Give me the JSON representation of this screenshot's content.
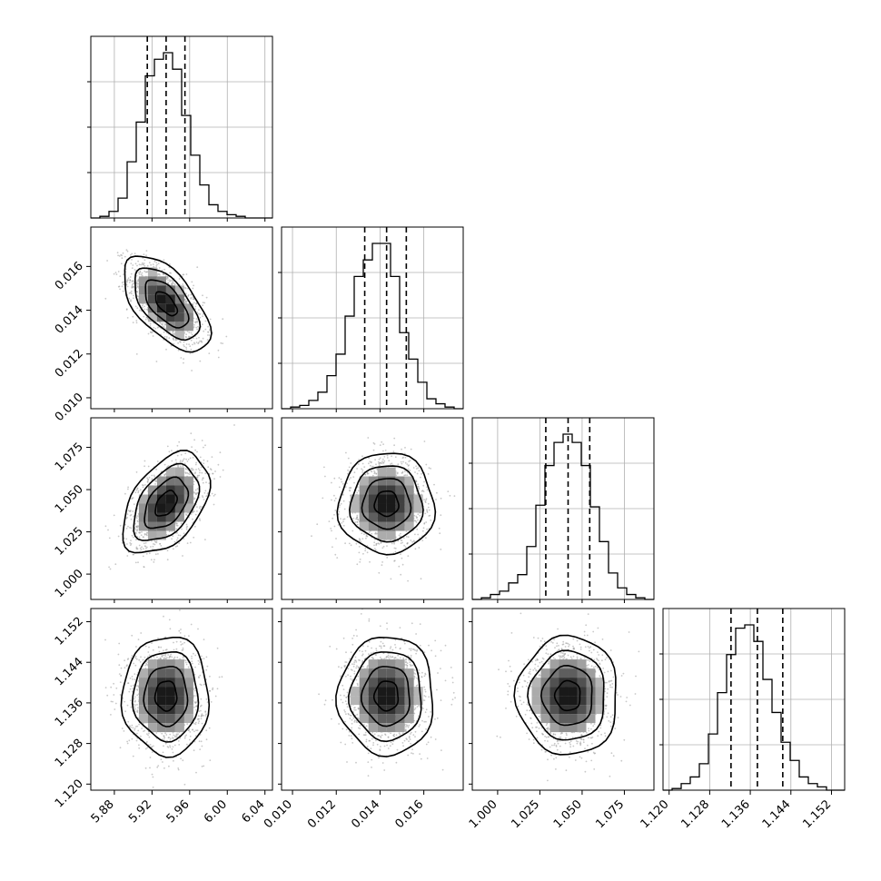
{
  "chart_data": {
    "type": "corner",
    "colors": {
      "line": "#000000",
      "grid": "#b0b0b0",
      "scatter": "#9a9a9a"
    },
    "grid": true,
    "parameters": [
      {
        "id": "p0",
        "range": [
          5.855,
          6.048
        ],
        "ticks": [
          5.88,
          5.92,
          5.96,
          6.0,
          6.04
        ],
        "tick_labels": [
          "5.88",
          "5.92",
          "5.96",
          "6.00",
          "6.04"
        ],
        "quantiles": [
          5.915,
          5.935,
          5.955
        ],
        "hist": [
          0.0,
          0.01,
          0.04,
          0.12,
          0.34,
          0.58,
          0.86,
          0.96,
          1.0,
          0.9,
          0.62,
          0.38,
          0.2,
          0.08,
          0.04,
          0.02,
          0.01,
          0.0,
          0.0,
          0.0
        ]
      },
      {
        "id": "p1",
        "range": [
          0.0095,
          0.0178
        ],
        "ticks": [
          0.01,
          0.012,
          0.014,
          0.016
        ],
        "tick_labels": [
          "0.010",
          "0.012",
          "0.014",
          "0.016"
        ],
        "quantiles": [
          0.0133,
          0.0143,
          0.0152
        ],
        "hist": [
          0.0,
          0.01,
          0.02,
          0.05,
          0.1,
          0.2,
          0.33,
          0.56,
          0.8,
          0.9,
          1.0,
          1.0,
          0.8,
          0.46,
          0.3,
          0.16,
          0.06,
          0.03,
          0.01,
          0.0
        ]
      },
      {
        "id": "p2",
        "range": [
          0.985,
          1.0925
        ],
        "ticks": [
          1.0,
          1.025,
          1.05,
          1.075
        ],
        "tick_labels": [
          "1.000",
          "1.025",
          "1.050",
          "1.075"
        ],
        "quantiles": [
          1.0285,
          1.0417,
          1.0545
        ],
        "hist": [
          0.0,
          0.01,
          0.03,
          0.05,
          0.1,
          0.15,
          0.32,
          0.57,
          0.81,
          0.95,
          1.0,
          0.95,
          0.81,
          0.56,
          0.35,
          0.16,
          0.07,
          0.03,
          0.01,
          0.0
        ]
      },
      {
        "id": "p3",
        "range": [
          1.1188,
          1.1546
        ],
        "ticks": [
          1.12,
          1.128,
          1.136,
          1.144,
          1.152
        ],
        "tick_labels": [
          "1.120",
          "1.128",
          "1.136",
          "1.144",
          "1.152"
        ],
        "quantiles": [
          1.1322,
          1.1374,
          1.1424
        ],
        "hist": [
          0.0,
          0.01,
          0.04,
          0.08,
          0.16,
          0.34,
          0.59,
          0.82,
          0.98,
          1.0,
          0.9,
          0.67,
          0.47,
          0.29,
          0.18,
          0.08,
          0.04,
          0.02,
          0.0,
          0.0
        ]
      }
    ],
    "pairs": [
      {
        "x": 0,
        "y": 1,
        "mean": [
          5.935,
          0.0143
        ],
        "sd": [
          0.02,
          0.00095
        ],
        "rho": -0.6
      },
      {
        "x": 0,
        "y": 2,
        "mean": [
          5.935,
          1.0417
        ],
        "sd": [
          0.02,
          0.013
        ],
        "rho": 0.45
      },
      {
        "x": 1,
        "y": 2,
        "mean": [
          0.0143,
          1.0417
        ],
        "sd": [
          0.00095,
          0.013
        ],
        "rho": 0.0
      },
      {
        "x": 0,
        "y": 3,
        "mean": [
          5.935,
          1.1374
        ],
        "sd": [
          0.02,
          0.0051
        ],
        "rho": 0.0
      },
      {
        "x": 1,
        "y": 3,
        "mean": [
          0.0143,
          1.1374
        ],
        "sd": [
          0.00095,
          0.0051
        ],
        "rho": 0.0
      },
      {
        "x": 2,
        "y": 3,
        "mean": [
          1.0417,
          1.1374
        ],
        "sd": [
          0.013,
          0.0051
        ],
        "rho": 0.0
      }
    ]
  }
}
